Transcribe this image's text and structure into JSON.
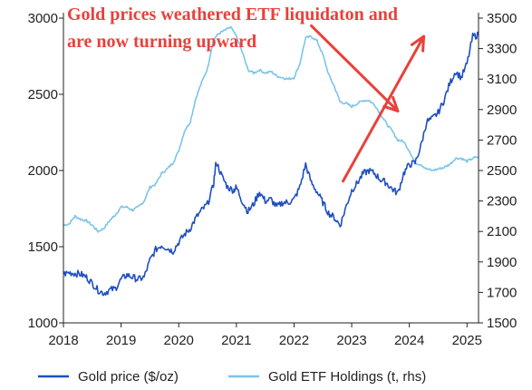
{
  "chart_data": {
    "type": "line",
    "annotation": [
      "Gold prices weathered ETF liquidaton and",
      "are now turning upward"
    ],
    "x_ticks": [
      "2018",
      "2019",
      "2020",
      "2021",
      "2022",
      "2023",
      "2024",
      "2025"
    ],
    "xlim": [
      2018.0,
      2025.2
    ],
    "y_left": {
      "ticks": [
        1000,
        1500,
        2000,
        2500,
        3000
      ],
      "ylim": [
        1000,
        3000
      ]
    },
    "y_right": {
      "ticks": [
        1500,
        1700,
        1900,
        2100,
        2300,
        2500,
        2700,
        2900,
        3100,
        3300,
        3500
      ],
      "ylim": [
        1500,
        3500
      ]
    },
    "colors": {
      "gold": "#1f4fc1",
      "etf": "#7cc4ea",
      "arrow": "#e8413b"
    },
    "series": [
      {
        "name": "Gold price ($/oz)",
        "axis": "left",
        "points": [
          [
            2018.0,
            1320
          ],
          [
            2018.1,
            1330
          ],
          [
            2018.2,
            1325
          ],
          [
            2018.3,
            1320
          ],
          [
            2018.4,
            1300
          ],
          [
            2018.5,
            1260
          ],
          [
            2018.6,
            1215
          ],
          [
            2018.7,
            1195
          ],
          [
            2018.8,
            1215
          ],
          [
            2018.9,
            1225
          ],
          [
            2019.0,
            1285
          ],
          [
            2019.1,
            1315
          ],
          [
            2019.2,
            1300
          ],
          [
            2019.3,
            1285
          ],
          [
            2019.4,
            1300
          ],
          [
            2019.5,
            1410
          ],
          [
            2019.6,
            1480
          ],
          [
            2019.7,
            1510
          ],
          [
            2019.8,
            1490
          ],
          [
            2019.9,
            1470
          ],
          [
            2020.0,
            1530
          ],
          [
            2020.1,
            1580
          ],
          [
            2020.2,
            1620
          ],
          [
            2020.3,
            1690
          ],
          [
            2020.4,
            1740
          ],
          [
            2020.5,
            1780
          ],
          [
            2020.6,
            1900
          ],
          [
            2020.65,
            2060
          ],
          [
            2020.75,
            1960
          ],
          [
            2020.85,
            1890
          ],
          [
            2020.95,
            1870
          ],
          [
            2021.0,
            1890
          ],
          [
            2021.1,
            1800
          ],
          [
            2021.2,
            1730
          ],
          [
            2021.3,
            1780
          ],
          [
            2021.4,
            1860
          ],
          [
            2021.5,
            1800
          ],
          [
            2021.6,
            1810
          ],
          [
            2021.7,
            1760
          ],
          [
            2021.8,
            1790
          ],
          [
            2021.9,
            1790
          ],
          [
            2022.0,
            1810
          ],
          [
            2022.1,
            1890
          ],
          [
            2022.2,
            2040
          ],
          [
            2022.3,
            1920
          ],
          [
            2022.4,
            1860
          ],
          [
            2022.5,
            1790
          ],
          [
            2022.6,
            1720
          ],
          [
            2022.7,
            1690
          ],
          [
            2022.8,
            1640
          ],
          [
            2022.9,
            1760
          ],
          [
            2023.0,
            1870
          ],
          [
            2023.1,
            1920
          ],
          [
            2023.2,
            1980
          ],
          [
            2023.3,
            2000
          ],
          [
            2023.4,
            1980
          ],
          [
            2023.5,
            1940
          ],
          [
            2023.6,
            1920
          ],
          [
            2023.7,
            1880
          ],
          [
            2023.8,
            1850
          ],
          [
            2023.9,
            1980
          ],
          [
            2024.0,
            2040
          ],
          [
            2024.1,
            2050
          ],
          [
            2024.2,
            2160
          ],
          [
            2024.3,
            2320
          ],
          [
            2024.4,
            2340
          ],
          [
            2024.5,
            2380
          ],
          [
            2024.6,
            2460
          ],
          [
            2024.7,
            2570
          ],
          [
            2024.8,
            2650
          ],
          [
            2024.9,
            2610
          ],
          [
            2025.0,
            2700
          ],
          [
            2025.1,
            2880
          ],
          [
            2025.2,
            2890
          ]
        ]
      },
      {
        "name": "Gold ETF Holdings (t, rhs)",
        "axis": "right",
        "points": [
          [
            2018.0,
            2140
          ],
          [
            2018.1,
            2150
          ],
          [
            2018.2,
            2200
          ],
          [
            2018.3,
            2180
          ],
          [
            2018.4,
            2170
          ],
          [
            2018.5,
            2140
          ],
          [
            2018.6,
            2100
          ],
          [
            2018.7,
            2120
          ],
          [
            2018.8,
            2170
          ],
          [
            2018.9,
            2210
          ],
          [
            2019.0,
            2260
          ],
          [
            2019.1,
            2260
          ],
          [
            2019.2,
            2240
          ],
          [
            2019.3,
            2260
          ],
          [
            2019.4,
            2300
          ],
          [
            2019.5,
            2390
          ],
          [
            2019.6,
            2410
          ],
          [
            2019.7,
            2480
          ],
          [
            2019.8,
            2510
          ],
          [
            2019.9,
            2550
          ],
          [
            2020.0,
            2630
          ],
          [
            2020.1,
            2760
          ],
          [
            2020.2,
            2820
          ],
          [
            2020.3,
            2980
          ],
          [
            2020.4,
            3080
          ],
          [
            2020.5,
            3170
          ],
          [
            2020.6,
            3360
          ],
          [
            2020.7,
            3400
          ],
          [
            2020.8,
            3420
          ],
          [
            2020.9,
            3440
          ],
          [
            2021.0,
            3380
          ],
          [
            2021.1,
            3280
          ],
          [
            2021.2,
            3160
          ],
          [
            2021.3,
            3140
          ],
          [
            2021.4,
            3160
          ],
          [
            2021.5,
            3140
          ],
          [
            2021.6,
            3150
          ],
          [
            2021.7,
            3120
          ],
          [
            2021.8,
            3110
          ],
          [
            2021.9,
            3100
          ],
          [
            2022.0,
            3110
          ],
          [
            2022.1,
            3200
          ],
          [
            2022.2,
            3370
          ],
          [
            2022.3,
            3380
          ],
          [
            2022.4,
            3350
          ],
          [
            2022.5,
            3260
          ],
          [
            2022.6,
            3130
          ],
          [
            2022.7,
            3050
          ],
          [
            2022.8,
            2950
          ],
          [
            2022.9,
            2940
          ],
          [
            2023.0,
            2920
          ],
          [
            2023.1,
            2940
          ],
          [
            2023.2,
            2960
          ],
          [
            2023.3,
            2960
          ],
          [
            2023.4,
            2930
          ],
          [
            2023.5,
            2870
          ],
          [
            2023.6,
            2810
          ],
          [
            2023.7,
            2760
          ],
          [
            2023.8,
            2700
          ],
          [
            2023.9,
            2690
          ],
          [
            2024.0,
            2630
          ],
          [
            2024.1,
            2550
          ],
          [
            2024.2,
            2540
          ],
          [
            2024.3,
            2510
          ],
          [
            2024.4,
            2500
          ],
          [
            2024.5,
            2510
          ],
          [
            2024.6,
            2520
          ],
          [
            2024.7,
            2540
          ],
          [
            2024.8,
            2580
          ],
          [
            2024.9,
            2580
          ],
          [
            2025.0,
            2560
          ],
          [
            2025.1,
            2580
          ],
          [
            2025.2,
            2590
          ]
        ]
      }
    ],
    "arrows": [
      {
        "from": [
          2022.3,
          2950
        ],
        "to": [
          2023.8,
          2390
        ]
      },
      {
        "from": [
          2022.85,
          1930
        ],
        "to": [
          2024.25,
          2880
        ]
      }
    ]
  }
}
